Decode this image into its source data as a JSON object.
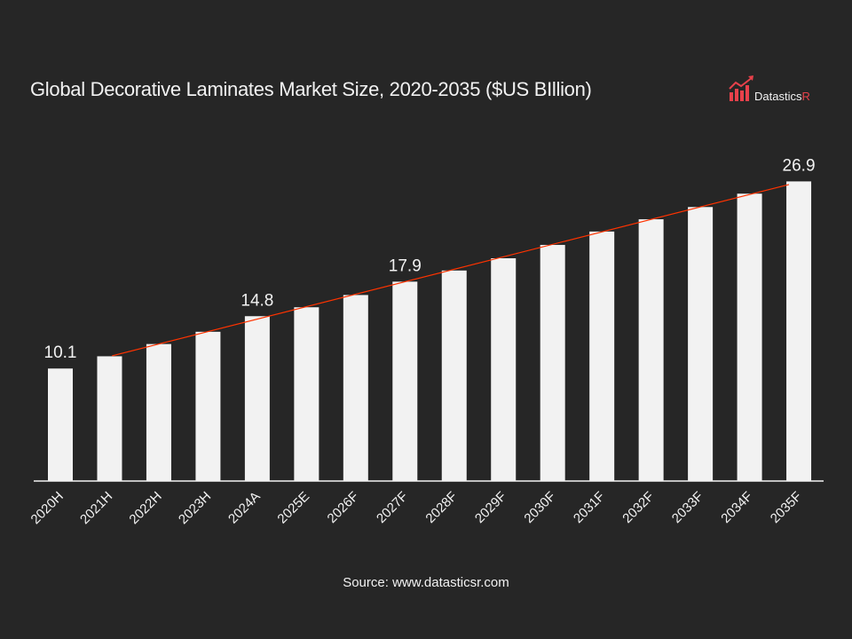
{
  "chart_data": {
    "type": "bar",
    "title": "Global Decorative Laminates Market Size, 2020-2035 ($US BIllion)",
    "categories": [
      "2020H",
      "2021H",
      "2022H",
      "2023H",
      "2024A",
      "2025E",
      "2026F",
      "2027F",
      "2028F",
      "2029F",
      "2030F",
      "2031F",
      "2032F",
      "2033F",
      "2034F",
      "2035F"
    ],
    "values": [
      10.1,
      11.2,
      12.3,
      13.4,
      14.8,
      15.6,
      16.7,
      17.9,
      18.9,
      20.0,
      21.2,
      22.4,
      23.5,
      24.6,
      25.8,
      26.9
    ],
    "data_labels": {
      "0": "10.1",
      "4": "14.8",
      "7": "17.9",
      "15": "26.9"
    },
    "xlabel": "",
    "ylabel": "",
    "ylim": [
      0,
      30
    ],
    "grid": false,
    "trendline": {
      "type": "linear",
      "from": "2021H",
      "to": "2035F",
      "color": "#ff3300"
    },
    "colors": {
      "bar": "#f2f2f2",
      "background": "#262626",
      "trendline": "#ff3300",
      "logo": "#e8414b"
    }
  },
  "logo": {
    "text": "DatasticsR"
  },
  "source": "Source: www.datasticsr.com"
}
